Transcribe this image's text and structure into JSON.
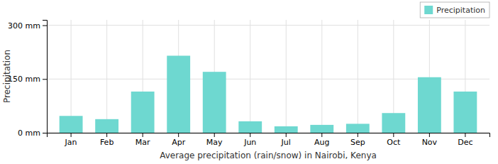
{
  "chart_data": {
    "type": "bar",
    "xlabel": "Average precipitation (rain/snow) in Nairobi, Kenya",
    "ylabel": "Precipitation",
    "categories": [
      "Jan",
      "Feb",
      "Mar",
      "Apr",
      "May",
      "Jun",
      "Jul",
      "Aug",
      "Sep",
      "Oct",
      "Nov",
      "Dec"
    ],
    "series": [
      {
        "name": "Precipitation",
        "color": "#6ed8d0",
        "values": [
          47,
          38,
          115,
          215,
          170,
          32,
          18,
          22,
          25,
          55,
          155,
          115
        ]
      }
    ],
    "ylim": [
      0,
      315
    ],
    "yticks": [
      {
        "value": 0,
        "label": "0 mm"
      },
      {
        "value": 150,
        "label": "150 mm"
      },
      {
        "value": 300,
        "label": "300 mm"
      }
    ],
    "grid": true,
    "legend": "upper right"
  }
}
